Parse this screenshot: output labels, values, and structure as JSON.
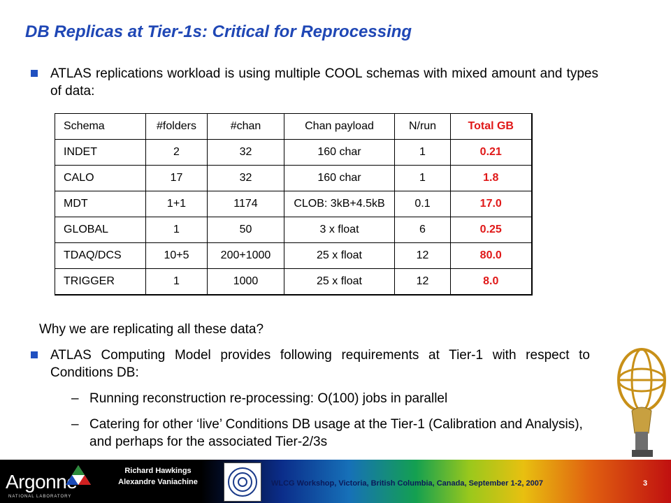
{
  "title": "DB Replicas at Tier-1s: Critical for Reprocessing",
  "bullet1": "ATLAS replications workload is using multiple COOL schemas with mixed amount and types of data:",
  "table": {
    "headers": [
      "Schema",
      "#folders",
      "#chan",
      "Chan payload",
      "N/run",
      "Total GB"
    ],
    "rows": [
      [
        "INDET",
        "2",
        "32",
        "160 char",
        "1",
        "0.21"
      ],
      [
        "CALO",
        "17",
        "32",
        "160 char",
        "1",
        "1.8"
      ],
      [
        "MDT",
        "1+1",
        "1174",
        "CLOB: 3kB+4.5kB",
        "0.1",
        "17.0"
      ],
      [
        "GLOBAL",
        "1",
        "50",
        "3 x float",
        "6",
        "0.25"
      ],
      [
        "TDAQ/DCS",
        "10+5",
        "200+1000",
        "25 x float",
        "12",
        "80.0"
      ],
      [
        "TRIGGER",
        "1",
        "1000",
        "25 x float",
        "12",
        "8.0"
      ]
    ]
  },
  "question": "Why we are replicating all these data?",
  "bullet2": "ATLAS Computing Model provides following requirements at Tier-1 with respect to Conditions DB:",
  "sub_bullets": [
    "Running reconstruction re-processing: O(100) jobs in parallel",
    "Catering for other ‘live’ Conditions DB usage at the Tier-1 (Calibration and Analysis), and perhaps for the associated Tier-2/3s"
  ],
  "footer": {
    "org": "Argonne",
    "org_sub": "NATIONAL LABORATORY",
    "author1": "Richard Hawkings",
    "author2": "Alexandre Vaniachine",
    "event": "WLCG Workshop, Victoria, British Columbia, Canada, September 1-2, 2007",
    "page": "3"
  },
  "colors": {
    "title": "#1f47b5",
    "bullet": "#2050c0",
    "highlight": "#e01818"
  }
}
